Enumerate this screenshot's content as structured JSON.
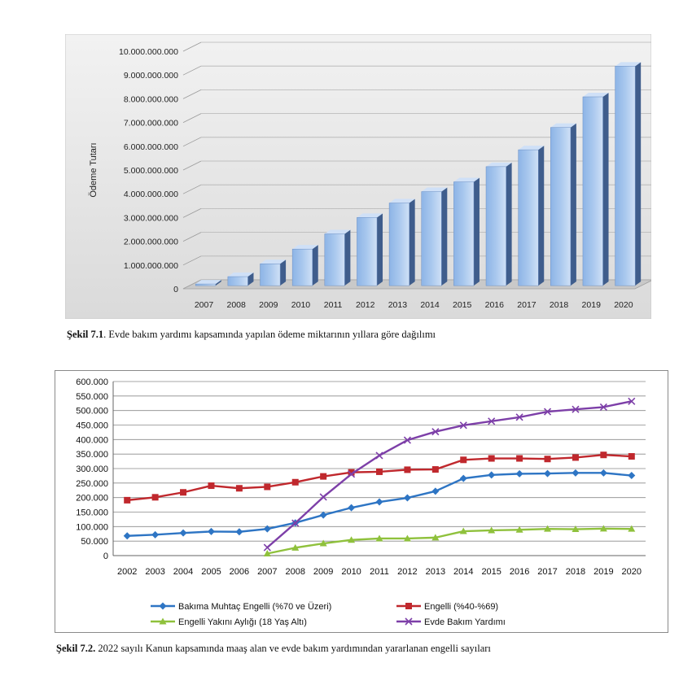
{
  "colors": {
    "chart1_background": "#dadada",
    "bar_front": "#a9c8ee",
    "bar_side": "#3f5d8c",
    "series1": "#2e75c4",
    "series2": "#c0282d",
    "series3": "#8fc13c",
    "series4": "#7d3fa8"
  },
  "chart_data": [
    {
      "type": "bar",
      "style": "3d-column",
      "ylabel": "Ödeme Tutarı",
      "categories": [
        "2007",
        "2008",
        "2009",
        "2010",
        "2011",
        "2012",
        "2013",
        "2014",
        "2015",
        "2016",
        "2017",
        "2018",
        "2019",
        "2020"
      ],
      "values": [
        70000000,
        380000000,
        920000000,
        1540000000,
        2180000000,
        2870000000,
        3480000000,
        3960000000,
        4370000000,
        5010000000,
        5720000000,
        6660000000,
        7950000000,
        9240000000
      ],
      "yticks": [
        "0",
        "1.000.000.000",
        "2.000.000.000",
        "3.000.000.000",
        "4.000.000.000",
        "5.000.000.000",
        "6.000.000.000",
        "7.000.000.000",
        "8.000.000.000",
        "9.000.000.000",
        "10.000.000.000"
      ],
      "ylim": [
        0,
        10000000000
      ],
      "grid": true,
      "caption": {
        "label": "Şekil 7.1",
        "text": ". Evde bakım yardımı kapsamında yapılan ödeme miktarının yıllara göre dağılımı"
      }
    },
    {
      "type": "line",
      "categories": [
        "2002",
        "2003",
        "2004",
        "2005",
        "2006",
        "2007",
        "2008",
        "2009",
        "2010",
        "2011",
        "2012",
        "2013",
        "2014",
        "2015",
        "2016",
        "2017",
        "2018",
        "2019",
        "2020"
      ],
      "ylim": [
        0,
        600000
      ],
      "yticks": [
        "0",
        "50.000",
        "100.000",
        "150.000",
        "200.000",
        "250.000",
        "300.000",
        "350.000",
        "400.000",
        "450.000",
        "500.000",
        "550.000",
        "600.000"
      ],
      "grid": true,
      "legend_position": "bottom",
      "series": [
        {
          "name": "Bakıma Muhtaç Engelli (%70 ve Üzeri)",
          "marker": "diamond",
          "values": [
            68000,
            72000,
            78000,
            83000,
            82000,
            92000,
            113000,
            140000,
            165000,
            185000,
            199000,
            222000,
            266000,
            278000,
            282000,
            283000,
            285000,
            285000,
            276000
          ]
        },
        {
          "name": "Engelli (%40-%69)",
          "marker": "square",
          "values": [
            191000,
            201000,
            218000,
            241000,
            232000,
            237000,
            253000,
            273000,
            287000,
            289000,
            296000,
            297000,
            330000,
            335000,
            335000,
            333000,
            338000,
            347000,
            342000
          ]
        },
        {
          "name": "Engelli Yakını Aylığı (18 Yaş Altı)",
          "marker": "triangle",
          "values": [
            null,
            null,
            null,
            null,
            null,
            7000,
            27000,
            42000,
            54000,
            59000,
            59000,
            62000,
            84000,
            87000,
            89000,
            92000,
            91000,
            93000,
            92000
          ]
        },
        {
          "name": "Evde Bakım Yardımı",
          "marker": "x",
          "values": [
            null,
            null,
            null,
            null,
            null,
            28000,
            112000,
            202000,
            281000,
            345000,
            398000,
            427000,
            449000,
            463000,
            477000,
            496000,
            504000,
            512000,
            532000
          ]
        }
      ],
      "caption": {
        "label": "Şekil 7.2.",
        "text": " 2022 sayılı Kanun kapsamında maaş alan ve evde bakım yardımından yararlanan engelli sayıları"
      }
    }
  ]
}
